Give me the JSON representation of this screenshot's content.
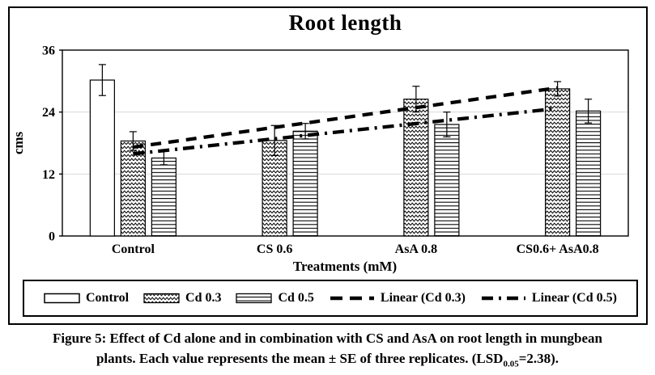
{
  "chart_data": {
    "type": "bar",
    "title": "Root length",
    "xlabel": "Treatments (mM)",
    "ylabel": "cms",
    "ylim": [
      0,
      36
    ],
    "yticks": [
      0,
      12,
      24,
      36
    ],
    "grid": "horizontal light-gray gridlines at interior ticks",
    "legend_position": "bottom",
    "categories": [
      "Control",
      "CS 0.6",
      "AsA 0.8",
      "CS0.6+ AsA0.8"
    ],
    "series": [
      {
        "name": "Control",
        "pattern": "solid-white",
        "values": [
          30.2,
          null,
          null,
          null
        ],
        "errors": [
          3.0,
          null,
          null,
          null
        ]
      },
      {
        "name": "Cd 0.3",
        "pattern": "wave",
        "values": [
          18.4,
          18.5,
          26.5,
          28.5
        ],
        "errors": [
          1.8,
          2.9,
          2.5,
          1.4
        ]
      },
      {
        "name": "Cd 0.5",
        "pattern": "horizontal-lines",
        "values": [
          15.1,
          20.3,
          21.6,
          24.2
        ],
        "errors": [
          1.3,
          1.5,
          2.4,
          2.3
        ]
      }
    ],
    "trendlines": [
      {
        "name": "Linear (Cd 0.3)",
        "series": "Cd 0.3",
        "style": "dashed",
        "x_start_category": 0,
        "x_end_category": 3,
        "start_value": 17.2,
        "end_value": 28.7
      },
      {
        "name": "Linear (Cd 0.5)",
        "series": "Cd 0.5",
        "style": "dash-dot",
        "x_start_category": 0,
        "x_end_category": 3,
        "start_value": 15.9,
        "end_value": 24.7
      }
    ],
    "legend": {
      "entries": [
        "Control",
        "Cd 0.3",
        "Cd 0.5",
        "Linear (Cd 0.3)",
        "Linear (Cd 0.5)"
      ]
    }
  },
  "caption": {
    "line1": "Figure 5: Effect of Cd alone and in combination with CS and AsA on root length in mungbean",
    "line2_pre": "plants. Each value represents the mean ± SE of three replicates. (LSD",
    "line2_sub": "0.05",
    "line2_post": "=2.38)."
  }
}
